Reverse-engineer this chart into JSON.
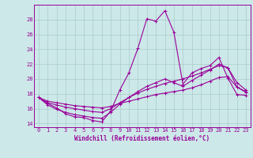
{
  "xlabel": "Windchill (Refroidissement éolien,°C)",
  "bg_color": "#cce8e8",
  "line_color": "#990099",
  "grid_color": "#aacccc",
  "xlim": [
    -0.5,
    23.5
  ],
  "ylim": [
    13.5,
    30.0
  ],
  "yticks": [
    14,
    16,
    18,
    20,
    22,
    24,
    26,
    28
  ],
  "xticks": [
    0,
    1,
    2,
    3,
    4,
    5,
    6,
    7,
    8,
    9,
    10,
    11,
    12,
    13,
    14,
    15,
    16,
    17,
    18,
    19,
    20,
    21,
    22,
    23
  ],
  "series": [
    [
      17.5,
      16.7,
      16.1,
      15.3,
      14.9,
      14.8,
      14.4,
      14.2,
      15.7,
      18.5,
      20.8,
      24.1,
      28.1,
      27.8,
      29.2,
      26.3,
      19.3,
      20.8,
      21.4,
      21.8,
      22.9,
      20.1,
      17.9,
      17.8
    ],
    [
      17.5,
      16.5,
      15.9,
      15.5,
      15.2,
      15.0,
      14.8,
      14.7,
      15.5,
      16.6,
      17.5,
      18.3,
      19.0,
      19.5,
      20.0,
      19.5,
      19.0,
      19.8,
      20.5,
      21.2,
      22.0,
      21.5,
      18.9,
      18.2
    ],
    [
      17.5,
      16.8,
      16.5,
      16.2,
      16.0,
      15.8,
      15.6,
      15.5,
      16.0,
      16.8,
      17.5,
      18.1,
      18.6,
      19.0,
      19.4,
      19.7,
      20.0,
      20.4,
      20.8,
      21.3,
      21.8,
      21.5,
      19.5,
      18.5
    ],
    [
      17.5,
      17.0,
      16.8,
      16.6,
      16.4,
      16.3,
      16.2,
      16.1,
      16.3,
      16.7,
      17.0,
      17.3,
      17.6,
      17.9,
      18.1,
      18.3,
      18.5,
      18.8,
      19.2,
      19.7,
      20.2,
      20.3,
      18.9,
      18.3
    ]
  ]
}
